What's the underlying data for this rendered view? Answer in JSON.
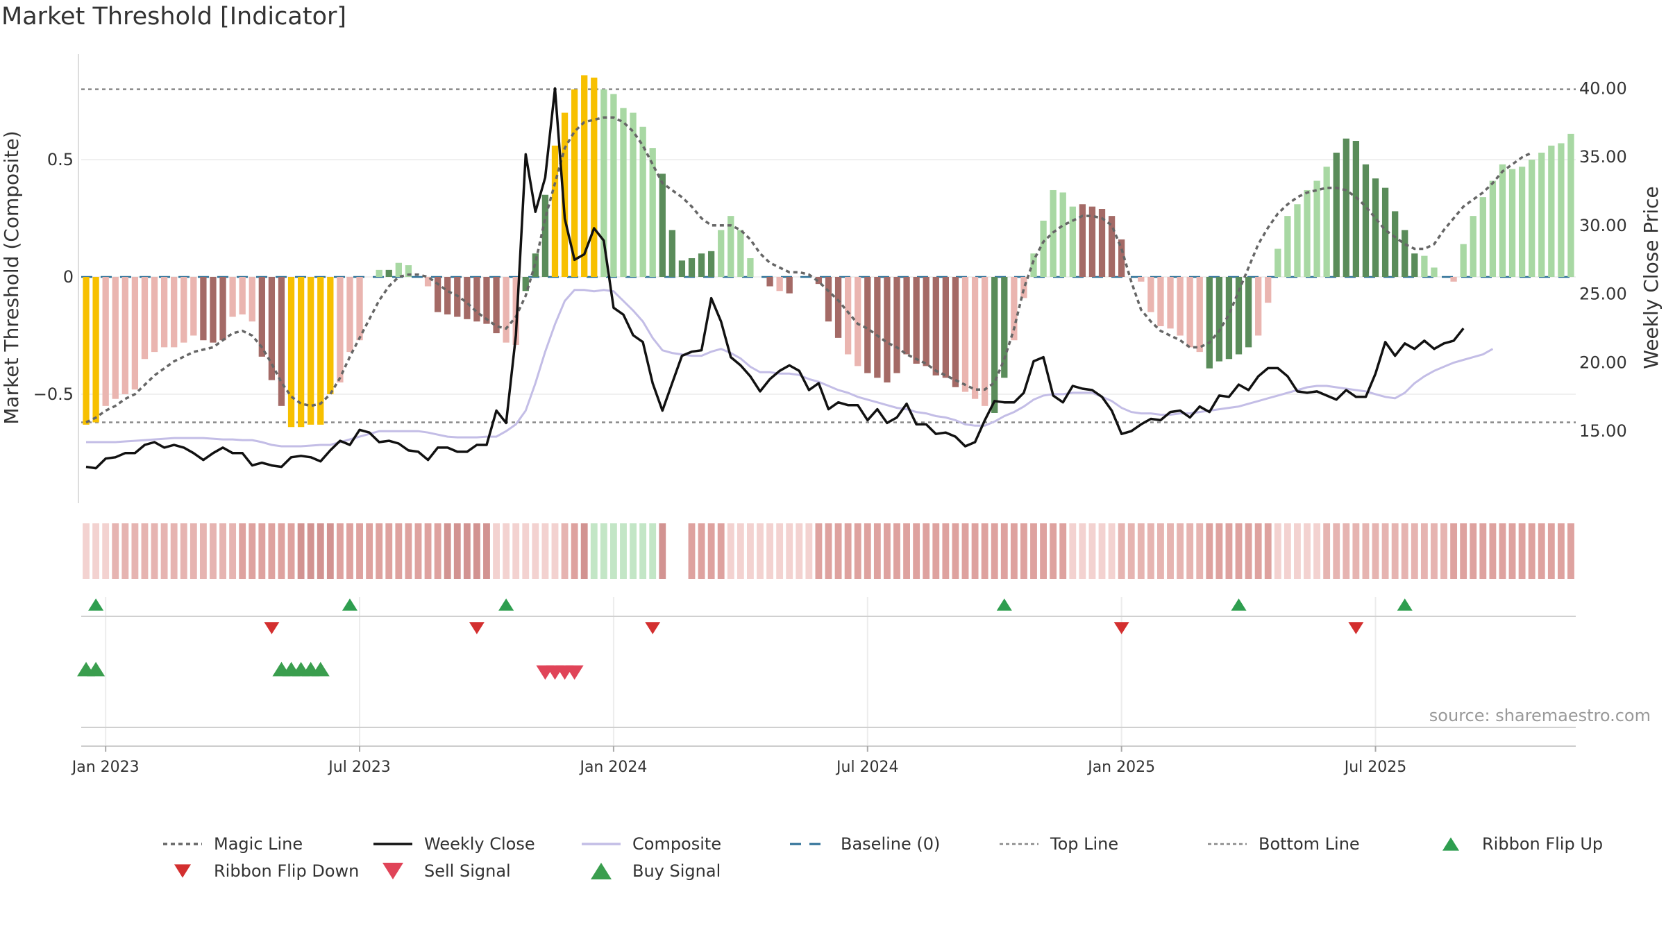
{
  "title": "Market Threshold [Indicator]",
  "source": "source: sharemaestro.com",
  "colors": {
    "magic": "#666666",
    "close": "#111111",
    "composite": "#c3bde6",
    "baseline": "#2c6f96",
    "guide": "#888888",
    "yellow": "#f7c000",
    "greenDark": "#5a8c5a",
    "greenLight": "#a8d8a3",
    "redDark": "#a46a66",
    "redLight": "#eab5b0",
    "flipUp": "#2e9e4f",
    "flipDown": "#d32f2f",
    "sell": "#e04458",
    "buy": "#3a9e4e",
    "grid": "#ececec"
  },
  "chart_data": {
    "type": "bar",
    "title": "Market Threshold [Indicator]",
    "ylabel": "Market Threshold (Composite)",
    "ylabel_right": "Weekly Close Price",
    "ylim": [
      -0.95,
      0.95
    ],
    "ylim_right": [
      10.0,
      42.5
    ],
    "yticks": [
      {
        "v": 0.5,
        "label": "0.5"
      },
      {
        "v": 0,
        "label": "0"
      },
      {
        "v": -0.5,
        "label": "−0.5"
      }
    ],
    "yticks_right": [
      {
        "v": 40,
        "label": "40.00"
      },
      {
        "v": 35,
        "label": "35.00"
      },
      {
        "v": 30,
        "label": "30.00"
      },
      {
        "v": 25,
        "label": "25.00"
      },
      {
        "v": 20,
        "label": "20.00"
      },
      {
        "v": 15,
        "label": "15.00"
      }
    ],
    "xticks": [
      {
        "week": 2,
        "label": "Jan 2023"
      },
      {
        "week": 28,
        "label": "Jul 2023"
      },
      {
        "week": 54,
        "label": "Jan 2024"
      },
      {
        "week": 80,
        "label": "Jul 2024"
      },
      {
        "week": 106,
        "label": "Jan 2025"
      },
      {
        "week": 132,
        "label": "Jul 2025"
      }
    ],
    "top_line": 0.8,
    "bottom_line": -0.62,
    "baseline": 0,
    "composite_bars": [
      -0.63,
      -0.62,
      -0.55,
      -0.52,
      -0.5,
      -0.48,
      -0.35,
      -0.32,
      -0.3,
      -0.3,
      -0.28,
      -0.25,
      -0.27,
      -0.28,
      -0.27,
      -0.17,
      -0.16,
      -0.19,
      -0.34,
      -0.44,
      -0.55,
      -0.64,
      -0.64,
      -0.63,
      -0.63,
      -0.5,
      -0.45,
      -0.32,
      -0.27,
      0,
      0.03,
      0.03,
      0.06,
      0.05,
      0,
      -0.04,
      -0.15,
      -0.16,
      -0.17,
      -0.18,
      -0.19,
      -0.2,
      -0.24,
      -0.28,
      -0.29,
      -0.06,
      0.1,
      0.35,
      0.56,
      0.7,
      0.8,
      0.86,
      0.85,
      0.8,
      0.78,
      0.72,
      0.7,
      0.64,
      0.55,
      0.44,
      0.2,
      0.07,
      0.08,
      0.1,
      0.11,
      0.2,
      0.26,
      0.2,
      0.08,
      0,
      -0.04,
      -0.06,
      -0.07,
      0,
      0,
      -0.03,
      -0.19,
      -0.26,
      -0.33,
      -0.38,
      -0.41,
      -0.43,
      -0.45,
      -0.41,
      -0.33,
      -0.37,
      -0.38,
      -0.42,
      -0.43,
      -0.47,
      -0.49,
      -0.52,
      -0.55,
      -0.58,
      -0.43,
      -0.27,
      -0.09,
      0.1,
      0.24,
      0.37,
      0.36,
      0.3,
      0.31,
      0.3,
      0.29,
      0.26,
      0.16,
      0,
      -0.02,
      -0.15,
      -0.21,
      -0.22,
      -0.25,
      -0.3,
      -0.32,
      -0.39,
      -0.36,
      -0.35,
      -0.33,
      -0.3,
      -0.25,
      -0.11,
      0.12,
      0.26,
      0.31,
      0.37,
      0.41,
      0.47,
      0.53,
      0.59,
      0.58,
      0.48,
      0.42,
      0.38,
      0.28,
      0.2,
      0.1,
      0.09,
      0.04,
      0,
      -0.02,
      0.14,
      0.26,
      0.34,
      0.41,
      0.48,
      0.46,
      0.47,
      0.5,
      0.53,
      0.56,
      0.57,
      0.61
    ],
    "bar_colors": "YYLLLLLLLLLLDDDLLLDDDYYYYYLLLLLGLLDLDDDDDDDLLGGGYYYYYLLLLLLGGGGGGLLLLDDLDDDDDDLLDDDDDDDDDDLLLGGLLLLLLLDDDDDDLLLLLLLGGGGGLLLLLLLLGGGGGGGGG",
    "magic_line": [
      -0.62,
      -0.6,
      -0.57,
      -0.55,
      -0.52,
      -0.5,
      -0.46,
      -0.42,
      -0.39,
      -0.36,
      -0.34,
      -0.32,
      -0.31,
      -0.3,
      -0.27,
      -0.24,
      -0.23,
      -0.25,
      -0.3,
      -0.37,
      -0.45,
      -0.51,
      -0.54,
      -0.55,
      -0.54,
      -0.5,
      -0.43,
      -0.34,
      -0.26,
      -0.18,
      -0.1,
      -0.04,
      0,
      0.01,
      0.01,
      0,
      -0.03,
      -0.06,
      -0.08,
      -0.11,
      -0.15,
      -0.18,
      -0.21,
      -0.22,
      -0.17,
      -0.08,
      0.06,
      0.25,
      0.4,
      0.55,
      0.62,
      0.66,
      0.67,
      0.68,
      0.68,
      0.66,
      0.62,
      0.56,
      0.48,
      0.4,
      0.37,
      0.34,
      0.3,
      0.25,
      0.22,
      0.22,
      0.22,
      0.2,
      0.16,
      0.1,
      0.06,
      0.04,
      0.02,
      0.02,
      0.01,
      -0.02,
      -0.06,
      -0.1,
      -0.15,
      -0.2,
      -0.22,
      -0.25,
      -0.28,
      -0.3,
      -0.33,
      -0.35,
      -0.37,
      -0.4,
      -0.42,
      -0.44,
      -0.46,
      -0.48,
      -0.48,
      -0.45,
      -0.35,
      -0.22,
      -0.05,
      0.07,
      0.15,
      0.19,
      0.22,
      0.24,
      0.26,
      0.26,
      0.25,
      0.22,
      0.12,
      -0.02,
      -0.14,
      -0.19,
      -0.23,
      -0.25,
      -0.27,
      -0.3,
      -0.3,
      -0.28,
      -0.23,
      -0.16,
      -0.06,
      0.04,
      0.14,
      0.21,
      0.27,
      0.31,
      0.34,
      0.36,
      0.37,
      0.38,
      0.38,
      0.37,
      0.34,
      0.3,
      0.25,
      0.2,
      0.17,
      0.14,
      0.12,
      0.12,
      0.14,
      0.2,
      0.25,
      0.3,
      0.33,
      0.36,
      0.4,
      0.45,
      0.48,
      0.51,
      0.53
    ],
    "weekly_close": [
      12.4,
      12.3,
      13.0,
      13.1,
      13.4,
      13.4,
      14.0,
      14.2,
      13.8,
      14.0,
      13.8,
      13.4,
      12.9,
      13.4,
      13.8,
      13.4,
      13.4,
      12.5,
      12.7,
      12.5,
      12.4,
      13.1,
      13.2,
      13.1,
      12.8,
      13.6,
      14.3,
      14.0,
      15.1,
      14.9,
      14.2,
      14.3,
      14.1,
      13.6,
      13.5,
      12.9,
      13.8,
      13.8,
      13.5,
      13.5,
      14.0,
      14.0,
      16.5,
      15.6,
      22.0,
      35.2,
      31.0,
      33.5,
      40.0,
      30.5,
      27.5,
      27.9,
      29.8,
      28.9,
      24.0,
      23.5,
      22.0,
      21.5,
      18.5,
      16.5,
      18.5,
      20.5,
      20.8,
      20.9,
      24.7,
      23.0,
      20.4,
      19.8,
      19.0,
      17.9,
      18.8,
      19.4,
      19.8,
      19.4,
      18.0,
      18.5,
      16.6,
      17.1,
      16.9,
      16.9,
      15.8,
      16.6,
      15.6,
      16.0,
      17.0,
      15.5,
      15.5,
      14.8,
      14.9,
      14.6,
      13.9,
      14.2,
      15.8,
      17.2,
      17.1,
      17.1,
      17.8,
      20.1,
      20.4,
      17.6,
      17.1,
      18.3,
      18.1,
      18.0,
      17.5,
      16.5,
      14.8,
      15.0,
      15.5,
      15.9,
      15.8,
      16.4,
      16.5,
      16.0,
      16.8,
      16.4,
      17.6,
      17.5,
      18.4,
      18.0,
      19.0,
      19.6,
      19.6,
      19.0,
      17.9,
      17.8,
      17.9,
      17.6,
      17.3,
      18.0,
      17.5,
      17.5,
      19.2,
      21.5,
      20.5,
      21.4,
      21.0,
      21.6,
      21.0,
      21.4,
      21.6,
      22.5
    ],
    "composite_line": [
      14.2,
      14.2,
      14.2,
      14.2,
      14.25,
      14.3,
      14.35,
      14.4,
      14.45,
      14.5,
      14.5,
      14.5,
      14.5,
      14.45,
      14.4,
      14.4,
      14.35,
      14.35,
      14.2,
      14.0,
      13.9,
      13.9,
      13.9,
      13.95,
      14.0,
      14.0,
      14.2,
      14.4,
      14.6,
      14.8,
      15.0,
      15.0,
      15.0,
      15.0,
      15.0,
      14.9,
      14.75,
      14.6,
      14.55,
      14.55,
      14.55,
      14.6,
      14.6,
      15.0,
      15.5,
      16.5,
      18.5,
      20.8,
      22.8,
      24.5,
      25.3,
      25.3,
      25.2,
      25.3,
      25.2,
      24.5,
      23.8,
      23.0,
      21.8,
      20.9,
      20.7,
      20.6,
      20.5,
      20.5,
      20.8,
      21.0,
      20.7,
      20.3,
      19.7,
      19.3,
      19.3,
      19.2,
      19.2,
      19.1,
      18.8,
      18.6,
      18.3,
      18.0,
      17.8,
      17.5,
      17.3,
      17.1,
      16.9,
      16.7,
      16.6,
      16.4,
      16.3,
      16.1,
      16.0,
      15.8,
      15.5,
      15.4,
      15.4,
      15.7,
      16.1,
      16.4,
      16.8,
      17.3,
      17.6,
      17.7,
      17.7,
      17.8,
      17.8,
      17.8,
      17.5,
      17.2,
      16.7,
      16.4,
      16.3,
      16.3,
      16.2,
      16.2,
      16.3,
      16.3,
      16.4,
      16.5,
      16.6,
      16.7,
      16.8,
      17.0,
      17.2,
      17.4,
      17.6,
      17.8,
      18.0,
      18.2,
      18.3,
      18.3,
      18.2,
      18.1,
      18.0,
      17.9,
      17.7,
      17.5,
      17.4,
      17.8,
      18.5,
      19.0,
      19.4,
      19.7,
      20.0,
      20.2,
      20.4,
      20.6,
      21.0
    ],
    "ribbon": "11122222222222223333334444333333333334444411111112345555555444333311111111133333333333333333333333333111112222222223333333111112222222222222333333333333333333333344111111111111111111111111",
    "ribbon_colors": [
      "#f3d2d0",
      "#e6b4b1",
      "#dea29f",
      "#d29391",
      "#c3e6c6",
      "#9fd3a5",
      "#72be80",
      "#4ea862"
    ],
    "ribbon_gap": [
      60,
      61
    ],
    "flip_up_weeks": [
      1,
      27,
      43,
      94,
      118,
      135
    ],
    "flip_down_weeks": [
      19,
      40,
      58,
      106,
      130
    ],
    "buy_weeks": [
      0,
      1,
      20,
      21,
      22,
      23,
      24
    ],
    "sell_weeks": [
      47,
      48,
      49,
      50
    ],
    "legend": [
      {
        "key": "magic",
        "label": "Magic Line"
      },
      {
        "key": "close",
        "label": "Weekly Close"
      },
      {
        "key": "composite",
        "label": "Composite"
      },
      {
        "key": "baseline",
        "label": "Baseline (0)"
      },
      {
        "key": "top",
        "label": "Top Line"
      },
      {
        "key": "bottom",
        "label": "Bottom Line"
      },
      {
        "key": "flipup",
        "label": "Ribbon Flip Up"
      },
      {
        "key": "flipdown",
        "label": "Ribbon Flip Down"
      },
      {
        "key": "sell",
        "label": "Sell Signal"
      },
      {
        "key": "buy",
        "label": "Buy Signal"
      }
    ]
  }
}
